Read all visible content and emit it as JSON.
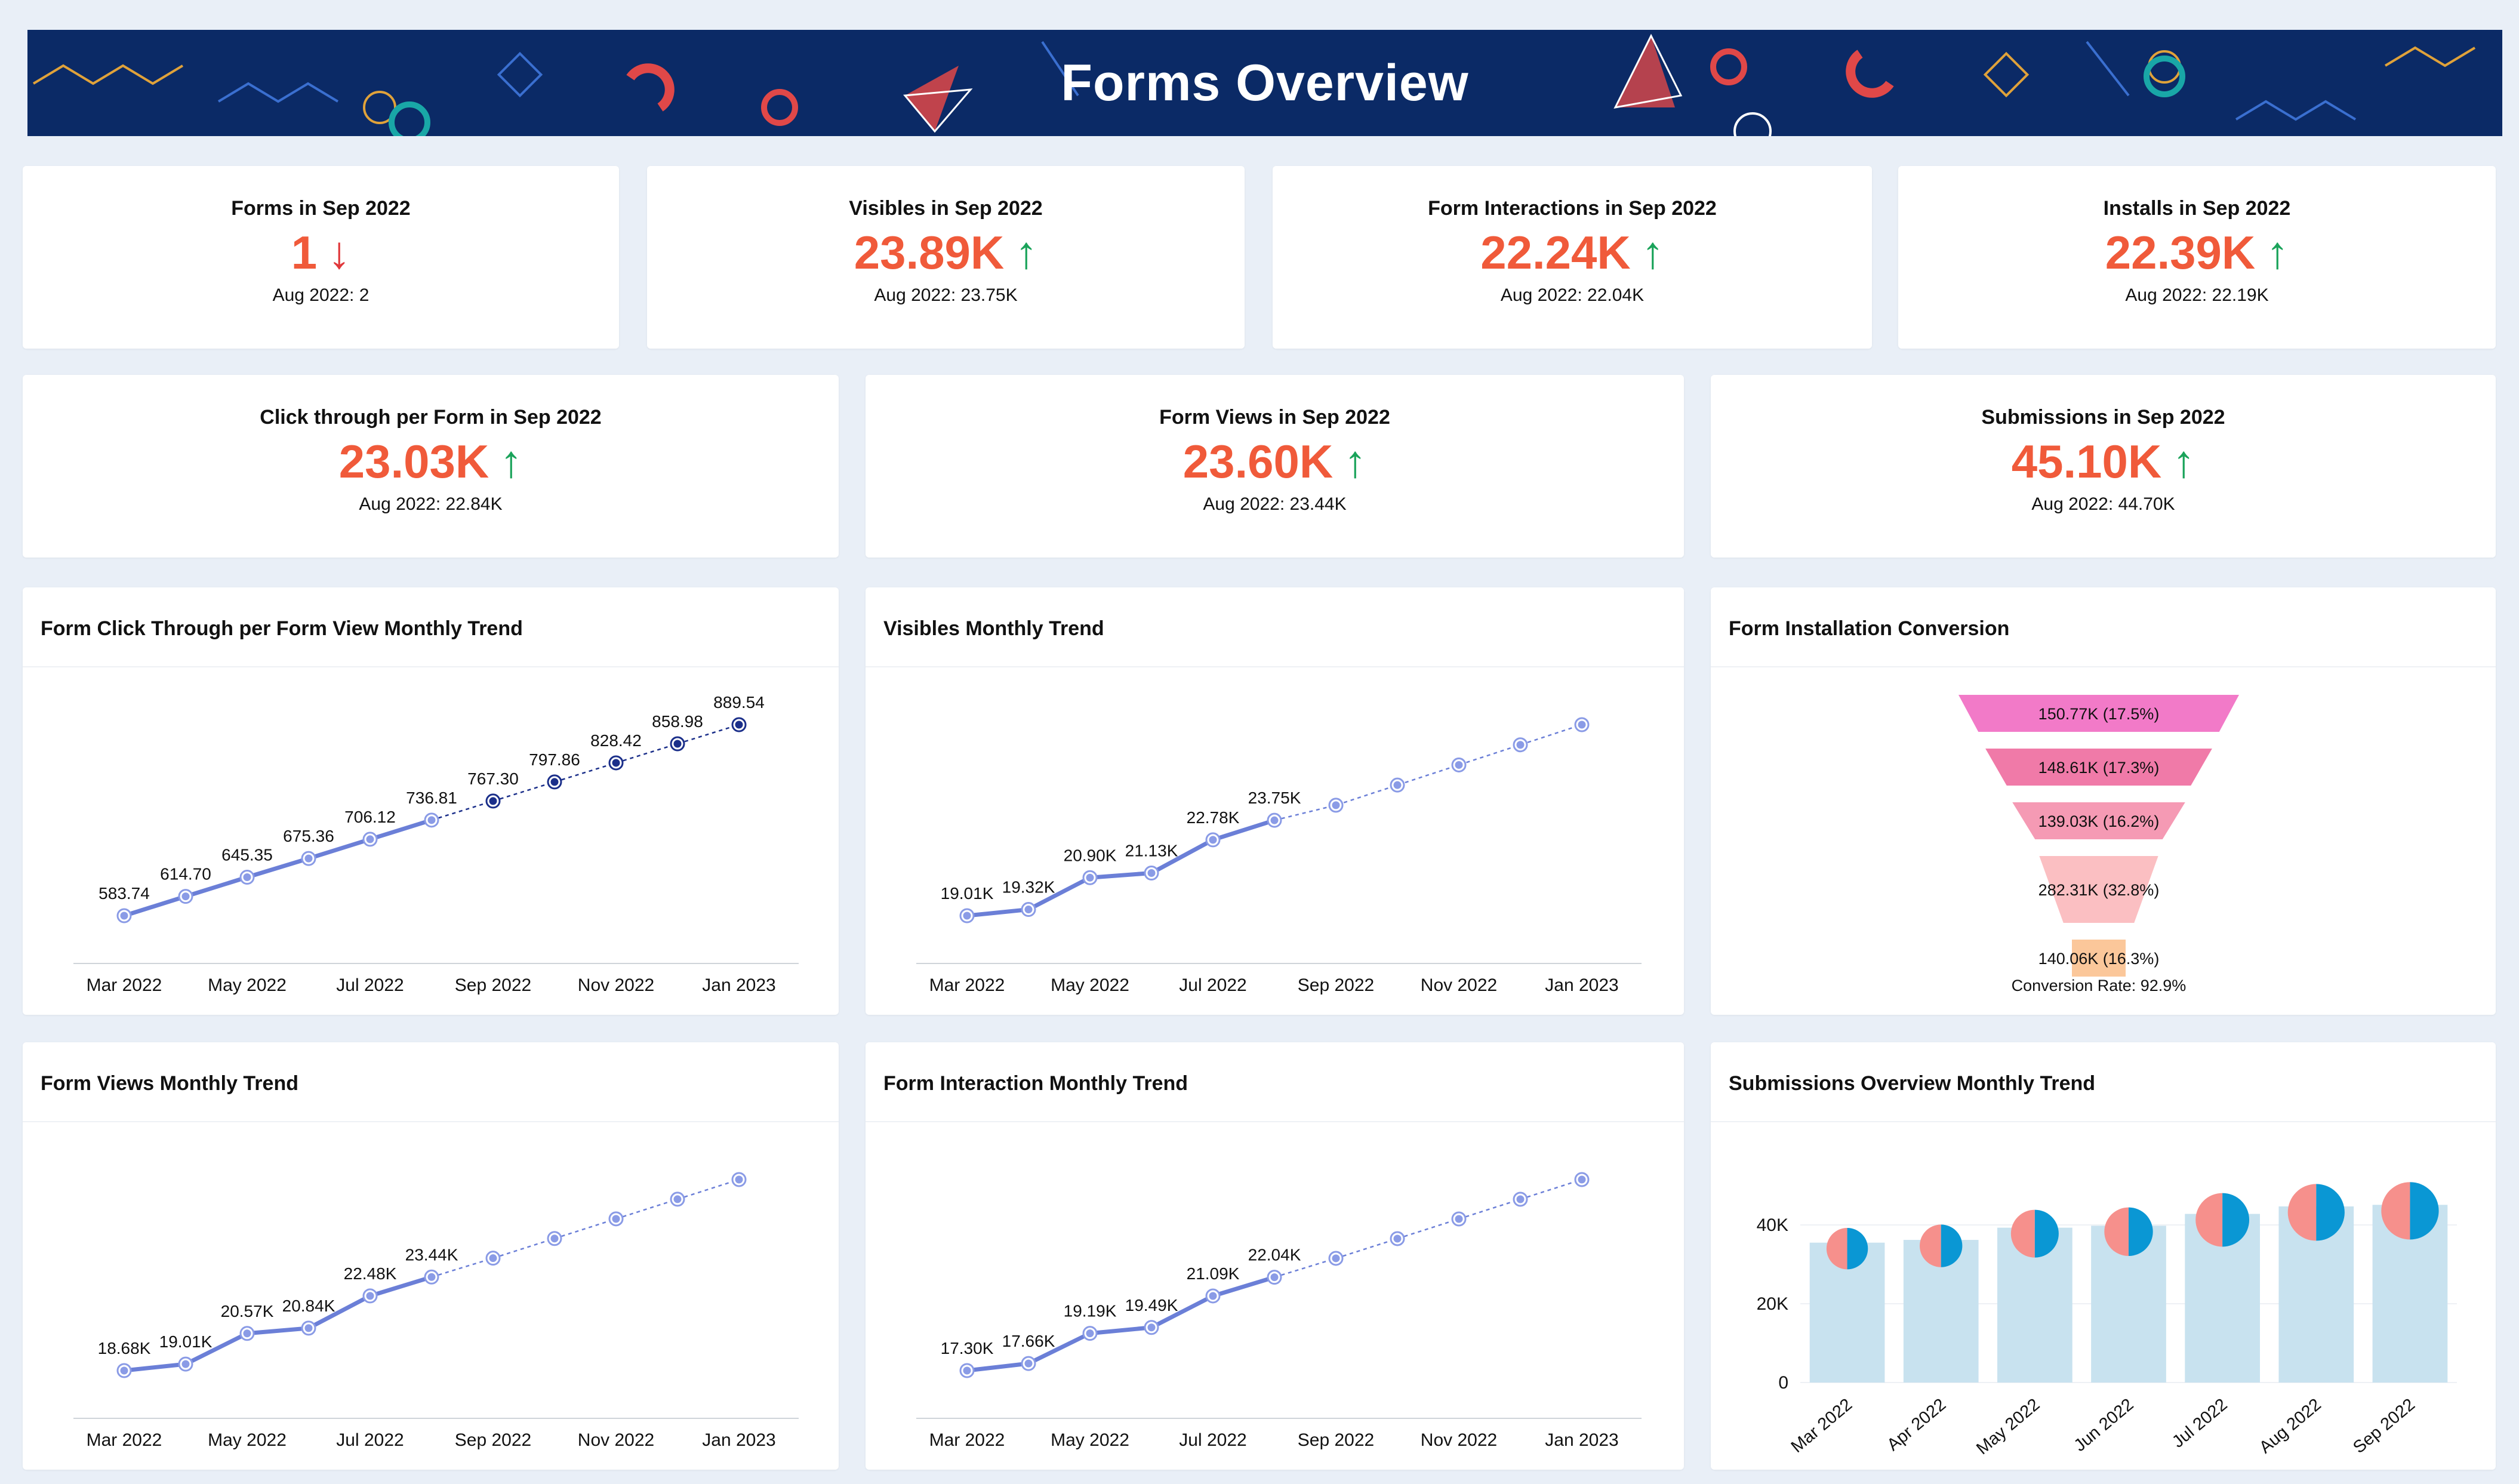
{
  "header": {
    "title": "Forms Overview"
  },
  "kpis_row1": [
    {
      "title": "Forms in Sep 2022",
      "value": "1",
      "direction": "down",
      "arrow": "↓",
      "previous": "Aug 2022: 2"
    },
    {
      "title": "Visibles in Sep 2022",
      "value": "23.89K",
      "direction": "up",
      "arrow": "↑",
      "previous": "Aug 2022: 23.75K"
    },
    {
      "title": "Form Interactions in Sep 2022",
      "value": "22.24K",
      "direction": "up",
      "arrow": "↑",
      "previous": "Aug 2022: 22.04K"
    },
    {
      "title": "Installs in Sep 2022",
      "value": "22.39K",
      "direction": "up",
      "arrow": "↑",
      "previous": "Aug 2022: 22.19K"
    }
  ],
  "kpis_row2": [
    {
      "title": "Click through per Form in Sep 2022",
      "value": "23.03K",
      "direction": "up",
      "arrow": "↑",
      "previous": "Aug 2022: 22.84K"
    },
    {
      "title": "Form Views in Sep 2022",
      "value": "23.60K",
      "direction": "up",
      "arrow": "↑",
      "previous": "Aug 2022: 23.44K"
    },
    {
      "title": "Submissions in Sep 2022",
      "value": "45.10K",
      "direction": "up",
      "arrow": "↑",
      "previous": "Aug 2022: 44.70K"
    }
  ],
  "colors": {
    "kpi_value": "#f05a3a",
    "up": "#1aa35a",
    "down": "#e0383b",
    "line": "#6b7fd7",
    "forecast_point": "#1b2f8a",
    "banner": "#0b2a66"
  },
  "charts": {
    "click_through": {
      "title": "Form Click Through per Form View Monthly Trend"
    },
    "visibles": {
      "title": "Visibles Monthly Trend"
    },
    "funnel": {
      "title": "Form Installation Conversion"
    },
    "form_views": {
      "title": "Form Views Monthly Trend"
    },
    "interaction": {
      "title": "Form Interaction Monthly Trend"
    },
    "submissions": {
      "title": "Submissions Overview Monthly Trend"
    }
  },
  "chart_data": [
    {
      "id": "click_through",
      "type": "line",
      "title": "Form Click Through per Form View Monthly Trend",
      "x": [
        "Mar 2022",
        "Apr 2022",
        "May 2022",
        "Jun 2022",
        "Jul 2022",
        "Aug 2022",
        "Sep 2022",
        "Oct 2022",
        "Nov 2022",
        "Dec 2022",
        "Jan 2023"
      ],
      "tick_labels": [
        "Mar 2022",
        "May 2022",
        "Jul 2022",
        "Sep 2022",
        "Nov 2022",
        "Jan 2023"
      ],
      "values": [
        583.74,
        614.7,
        645.35,
        675.36,
        706.12,
        736.81,
        767.3,
        797.86,
        828.42,
        858.98,
        889.54
      ],
      "labels": [
        "583.74",
        "614.70",
        "645.35",
        "675.36",
        "706.12",
        "736.81",
        "767.30",
        "797.86",
        "828.42",
        "858.98",
        "889.54"
      ],
      "actual_count": 6,
      "forecast_style": "dark"
    },
    {
      "id": "visibles",
      "type": "line",
      "title": "Visibles Monthly Trend",
      "x": [
        "Mar 2022",
        "Apr 2022",
        "May 2022",
        "Jun 2022",
        "Jul 2022",
        "Aug 2022",
        "Sep 2022",
        "Oct 2022",
        "Nov 2022",
        "Dec 2022",
        "Jan 2023"
      ],
      "tick_labels": [
        "Mar 2022",
        "May 2022",
        "Jul 2022",
        "Sep 2022",
        "Nov 2022",
        "Jan 2023"
      ],
      "values": [
        19.01,
        19.32,
        20.9,
        21.13,
        22.78,
        23.75,
        24.5,
        25.5,
        26.5,
        27.5,
        28.5
      ],
      "labels": [
        "19.01K",
        "19.32K",
        "20.90K",
        "21.13K",
        "22.78K",
        "23.75K",
        "",
        "",
        "",
        "",
        ""
      ],
      "actual_count": 6,
      "forecast_style": "light"
    },
    {
      "id": "funnel",
      "type": "funnel",
      "title": "Form Installation Conversion",
      "stages": [
        {
          "label": "150.77K (17.5%)",
          "value": 150.77,
          "color": "#f27ac8"
        },
        {
          "label": "148.61K (17.3%)",
          "value": 148.61,
          "color": "#f07aa8"
        },
        {
          "label": "139.03K (16.2%)",
          "value": 139.03,
          "color": "#f59ab4"
        },
        {
          "label": "282.31K (32.8%)",
          "value": 282.31,
          "color": "#fbbfc2"
        },
        {
          "label": "140.06K (16.3%)",
          "value": 140.06,
          "color": "#fbc79a"
        }
      ],
      "conversion_label": "Conversion Rate: 92.9%"
    },
    {
      "id": "form_views",
      "type": "line",
      "title": "Form Views Monthly Trend",
      "x": [
        "Mar 2022",
        "Apr 2022",
        "May 2022",
        "Jun 2022",
        "Jul 2022",
        "Aug 2022",
        "Sep 2022",
        "Oct 2022",
        "Nov 2022",
        "Dec 2022",
        "Jan 2023"
      ],
      "tick_labels": [
        "Mar 2022",
        "May 2022",
        "Jul 2022",
        "Sep 2022",
        "Nov 2022",
        "Jan 2023"
      ],
      "values": [
        18.68,
        19.01,
        20.57,
        20.84,
        22.48,
        23.44,
        24.4,
        25.4,
        26.4,
        27.4,
        28.4
      ],
      "labels": [
        "18.68K",
        "19.01K",
        "20.57K",
        "20.84K",
        "22.48K",
        "23.44K",
        "",
        "",
        "",
        "",
        ""
      ],
      "actual_count": 6,
      "forecast_style": "light"
    },
    {
      "id": "interaction",
      "type": "line",
      "title": "Form Interaction Monthly Trend",
      "x": [
        "Mar 2022",
        "Apr 2022",
        "May 2022",
        "Jun 2022",
        "Jul 2022",
        "Aug 2022",
        "Sep 2022",
        "Oct 2022",
        "Nov 2022",
        "Dec 2022",
        "Jan 2023"
      ],
      "tick_labels": [
        "Mar 2022",
        "May 2022",
        "Jul 2022",
        "Sep 2022",
        "Nov 2022",
        "Jan 2023"
      ],
      "values": [
        17.3,
        17.66,
        19.19,
        19.49,
        21.09,
        22.04,
        23.0,
        24.0,
        25.0,
        26.0,
        27.0
      ],
      "labels": [
        "17.30K",
        "17.66K",
        "19.19K",
        "19.49K",
        "21.09K",
        "22.04K",
        "",
        "",
        "",
        "",
        ""
      ],
      "actual_count": 6,
      "forecast_style": "light"
    },
    {
      "id": "submissions",
      "type": "bar",
      "title": "Submissions Overview Monthly Trend",
      "categories": [
        "Mar 2022",
        "Apr 2022",
        "May 2022",
        "Jun 2022",
        "Jul 2022",
        "Aug 2022",
        "Sep 2022"
      ],
      "values": [
        35.5,
        36.2,
        39.3,
        39.8,
        42.8,
        44.7,
        45.1
      ],
      "y_ticks": [
        "0",
        "20K",
        "40K"
      ],
      "ylim": [
        0,
        50
      ],
      "bar_color": "#c8e2ef",
      "pie_colors": [
        "#f6908c",
        "#0a97d4"
      ]
    }
  ]
}
